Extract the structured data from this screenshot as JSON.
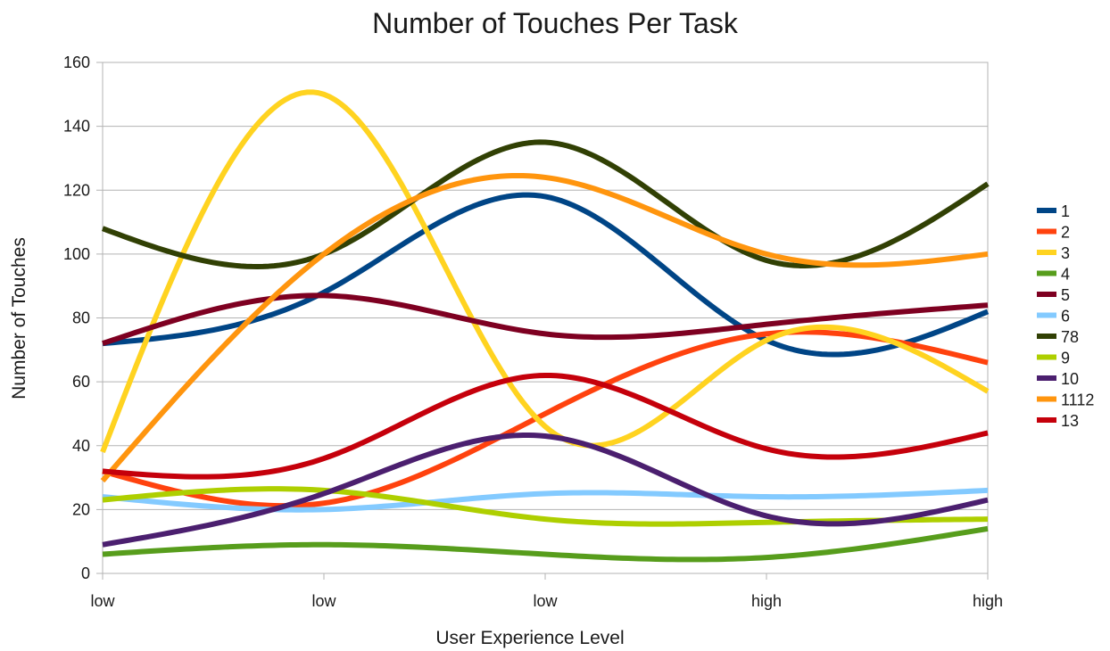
{
  "chart_data": {
    "type": "line",
    "title": "Number of Touches Per Task",
    "xlabel": "User Experience Level",
    "ylabel": "Number of Touches",
    "categories": [
      "low",
      "low",
      "low",
      "high",
      "high"
    ],
    "ylim": [
      0,
      160
    ],
    "yticks": [
      0,
      20,
      40,
      60,
      80,
      100,
      120,
      140,
      160
    ],
    "grid": true,
    "smooth": true,
    "legend_position": "right",
    "series": [
      {
        "name": "1",
        "color": "#004586",
        "values": [
          72,
          88,
          118,
          73,
          82
        ]
      },
      {
        "name": "2",
        "color": "#ff420e",
        "values": [
          32,
          22,
          50,
          75,
          66
        ]
      },
      {
        "name": "3",
        "color": "#ffd320",
        "values": [
          38,
          150,
          46,
          73,
          57
        ]
      },
      {
        "name": "4",
        "color": "#579d1c",
        "values": [
          6,
          9,
          6,
          5,
          14
        ]
      },
      {
        "name": "5",
        "color": "#7e0021",
        "values": [
          72,
          87,
          75,
          78,
          84
        ]
      },
      {
        "name": "6",
        "color": "#83caff",
        "values": [
          24,
          20,
          25,
          24,
          26
        ]
      },
      {
        "name": "78",
        "color": "#314004",
        "values": [
          108,
          100,
          135,
          98,
          122
        ]
      },
      {
        "name": "9",
        "color": "#aecf00",
        "values": [
          23,
          26,
          17,
          16,
          17
        ]
      },
      {
        "name": "10",
        "color": "#4b1f6f",
        "values": [
          9,
          25,
          43,
          18,
          23
        ]
      },
      {
        "name": "1112",
        "color": "#ff950e",
        "values": [
          29,
          100,
          124,
          100,
          100
        ]
      },
      {
        "name": "13",
        "color": "#c5000b",
        "values": [
          32,
          36,
          62,
          39,
          44
        ]
      }
    ]
  }
}
